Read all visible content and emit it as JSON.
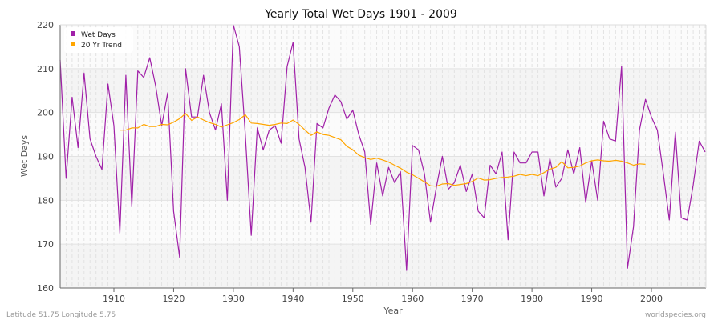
{
  "chart_data": {
    "type": "line",
    "title": "Yearly Total Wet Days 1901 - 2009",
    "xlabel": "Year",
    "ylabel": "Wet Days",
    "xlim": [
      1901,
      2009
    ],
    "ylim": [
      160,
      220
    ],
    "xticks": [
      1910,
      1920,
      1930,
      1940,
      1950,
      1960,
      1970,
      1980,
      1990,
      2000
    ],
    "yticks": [
      160,
      170,
      180,
      190,
      200,
      210,
      220
    ],
    "grid": true,
    "legend_placement": "top-left",
    "series": [
      {
        "name": "Wet Days",
        "color": "#a020a8",
        "x_start": 1901,
        "values": [
          212,
          185,
          203.5,
          192,
          209,
          194,
          190,
          187,
          206.5,
          197,
          172.5,
          208.5,
          178.5,
          209.5,
          208,
          212.5,
          206,
          197,
          204.5,
          177.5,
          167,
          210,
          199,
          199,
          208.5,
          200,
          196,
          202,
          180,
          220,
          215,
          195,
          172,
          196.5,
          191.5,
          196,
          197,
          193,
          210.5,
          216,
          194,
          187.5,
          175,
          197.5,
          196.5,
          201,
          204,
          202.5,
          198.5,
          200.5,
          195,
          191,
          174.5,
          188.5,
          181,
          187.5,
          184,
          186.5,
          164,
          192.5,
          191.5,
          186,
          175,
          183,
          190,
          182.5,
          184,
          188,
          182,
          186,
          177.5,
          176,
          188,
          186,
          191,
          171,
          191,
          188.5,
          188.5,
          191,
          191,
          181,
          189.5,
          183,
          185,
          191.5,
          186,
          192,
          179.5,
          189,
          180,
          198,
          194,
          193.5,
          210.5,
          164.5,
          174,
          196,
          203,
          199,
          196,
          186,
          175.5,
          195.5,
          176,
          175.5,
          183.5,
          193.5,
          191
        ]
      },
      {
        "name": "20 Yr Trend",
        "color": "#ffa500",
        "x_start": 1911,
        "values": [
          196,
          196,
          196.5,
          196.5,
          197.3,
          196.8,
          196.8,
          197.3,
          197.2,
          197.8,
          198.6,
          199.8,
          198.2,
          199,
          198.3,
          197.7,
          197.3,
          196.7,
          197.2,
          197.7,
          198.4,
          199.5,
          197.6,
          197.5,
          197.3,
          197.1,
          197.3,
          197.6,
          197.5,
          198.3,
          197.3,
          196,
          194.8,
          195.6,
          195,
          194.8,
          194.3,
          193.8,
          192.3,
          191.5,
          190.3,
          189.7,
          189.3,
          189.6,
          189.2,
          188.7,
          188,
          187.3,
          186.4,
          185.8,
          185,
          184.2,
          183.3,
          183.2,
          183.7,
          183.8,
          183.4,
          183.6,
          183.8,
          184.3,
          185.1,
          184.6,
          184.7,
          185,
          185.2,
          185.3,
          185.5,
          185.9,
          185.6,
          185.9,
          185.6,
          186.3,
          187.1,
          187.5,
          188.8,
          187.4,
          187.5,
          187.8,
          188.5,
          189,
          189.2,
          189,
          188.9,
          189.1,
          188.9,
          188.5,
          188,
          188.3,
          188.2
        ]
      }
    ]
  },
  "footer": {
    "location": "Latitude 51.75 Longitude 5.75",
    "source": "worldspecies.org"
  }
}
